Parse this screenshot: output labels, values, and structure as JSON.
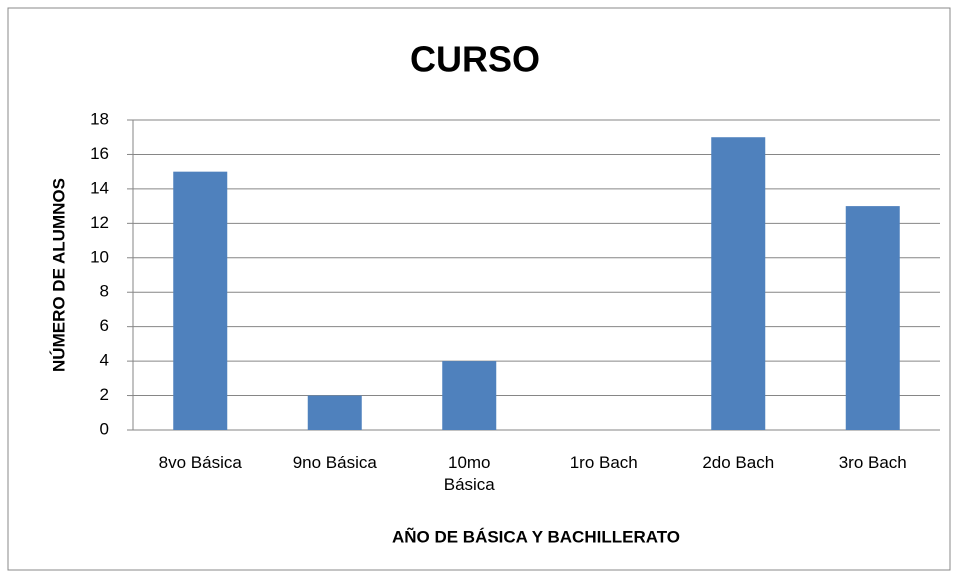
{
  "chart_data": {
    "type": "bar",
    "title": "CURSO",
    "y_label": "NÚMERO DE ALUMNOS",
    "x_label": "AÑO DE BÁSICA Y BACHILLERATO",
    "categories": [
      "8vo Básica",
      "9no Básica",
      "10mo Básica",
      "1ro Bach",
      "2do Bach",
      "3ro Bach"
    ],
    "values": [
      15,
      2,
      4,
      0,
      17,
      13
    ],
    "color": "#4f81bd",
    "ylim": [
      0,
      18
    ],
    "yticks": [
      0,
      2,
      4,
      6,
      8,
      10,
      12,
      14,
      16,
      18
    ],
    "grid": true
  }
}
